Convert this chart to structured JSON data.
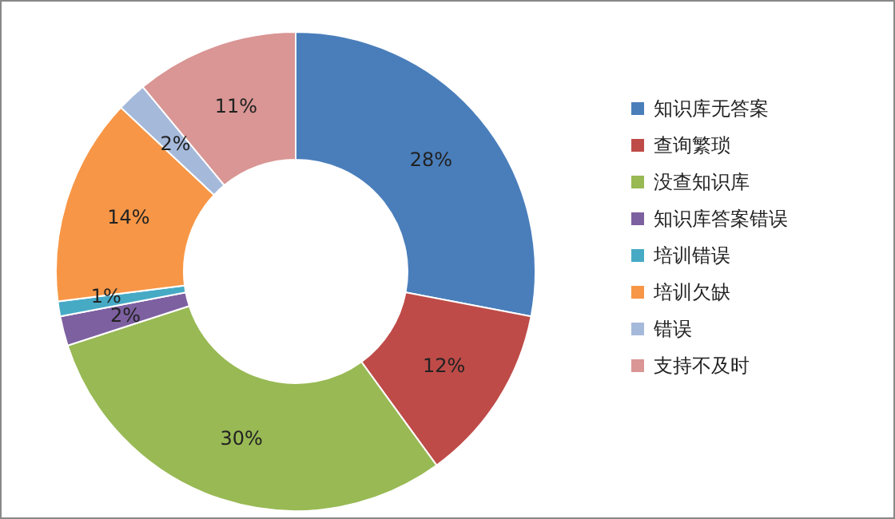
{
  "chart_data": {
    "type": "donut",
    "categories": [
      "知识库无答案",
      "查询繁琐",
      "没查知识库",
      "知识库答案错误",
      "培训错误",
      "培训欠缺",
      "错误",
      "支持不及时"
    ],
    "values": [
      28,
      12,
      30,
      2,
      1,
      14,
      2,
      11
    ],
    "colors": [
      "#4a7ebb",
      "#be4b48",
      "#98b954",
      "#7d60a0",
      "#46aac5",
      "#f79646",
      "#a5b9db",
      "#d99694"
    ],
    "value_labels": [
      "28%",
      "12%",
      "30%",
      "2%",
      "1%",
      "14%",
      "2%",
      "11%"
    ],
    "legend": "right"
  }
}
